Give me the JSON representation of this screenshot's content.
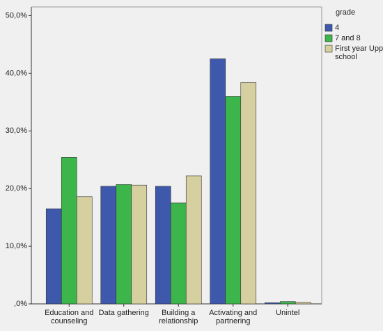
{
  "chart_data": {
    "type": "bar",
    "categories": [
      "Education and counseling",
      "Data gathering",
      "Building a relationship",
      "Activating and partnering",
      "Unintel"
    ],
    "series": [
      {
        "name": "4",
        "color": "#3e58ac",
        "values": [
          16.5,
          20.4,
          20.4,
          42.5,
          0.2
        ]
      },
      {
        "name": "7 and 8",
        "color": "#3cb54a",
        "values": [
          25.4,
          20.7,
          17.5,
          36.0,
          0.4
        ]
      },
      {
        "name": "First year Upp school",
        "color": "#d6cf9f",
        "values": [
          18.6,
          20.6,
          22.2,
          38.4,
          0.3
        ]
      }
    ],
    "legend_title": "grade",
    "legend": "right",
    "ylim": [
      0,
      51.5
    ],
    "yticks": [
      {
        "value": 0,
        "label": ",0%"
      },
      {
        "value": 10,
        "label": "10,0%"
      },
      {
        "value": 20,
        "label": "20,0%"
      },
      {
        "value": 30,
        "label": "30,0%"
      },
      {
        "value": 40,
        "label": "40,0%"
      },
      {
        "value": 50,
        "label": "50,0%"
      }
    ],
    "grid": false
  }
}
